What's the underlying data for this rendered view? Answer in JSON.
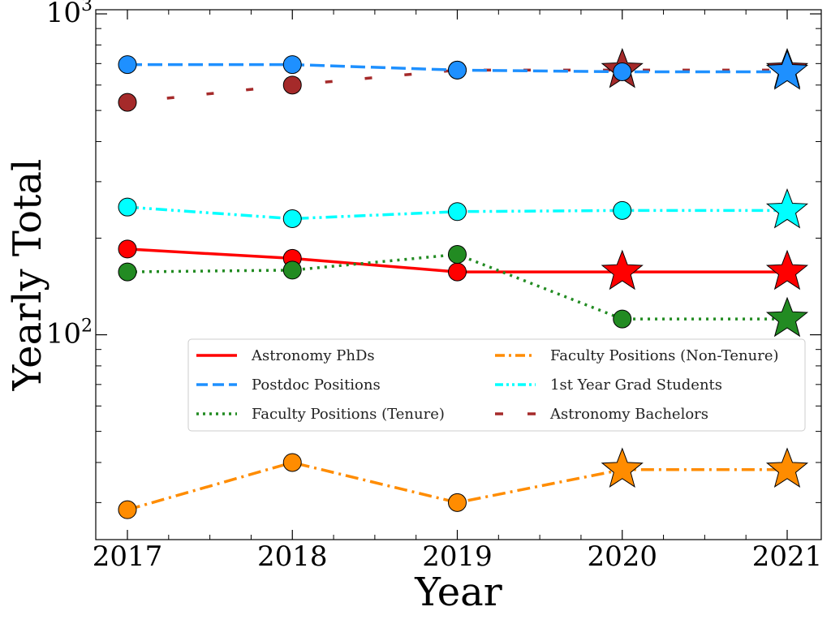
{
  "chart_data": {
    "type": "line",
    "title": "",
    "xlabel": "Year",
    "ylabel": "Yearly Total",
    "yscale": "log",
    "ylim": [
      23,
      1030
    ],
    "xlim": [
      2016.8,
      2021.2
    ],
    "x": [
      2017,
      2018,
      2019,
      2020,
      2021
    ],
    "x_tick_labels": [
      "2017",
      "2018",
      "2019",
      "2020",
      "2021"
    ],
    "y_tick_labels": [
      {
        "value": 100,
        "base": "10",
        "exp": "2"
      },
      {
        "value": 1000,
        "base": "10",
        "exp": "3"
      }
    ],
    "grid": false,
    "legend_position": "center-right",
    "legend_columns": 2,
    "series": [
      {
        "name": "Astronomy PhDs",
        "color": "#ff0000",
        "linestyle": "solid",
        "values": [
          185,
          173,
          157,
          157,
          157
        ],
        "estimated": [
          false,
          false,
          false,
          true,
          true
        ]
      },
      {
        "name": "Postdoc Positions",
        "color": "#1e90ff",
        "linestyle": "dashed",
        "values": [
          695,
          695,
          668,
          660,
          660
        ],
        "estimated": [
          false,
          false,
          false,
          false,
          true
        ]
      },
      {
        "name": "Faculty Positions (Tenure)",
        "color": "#228b22",
        "linestyle": "dotted",
        "values": [
          157,
          159,
          178,
          112,
          112
        ],
        "estimated": [
          false,
          false,
          false,
          false,
          true
        ]
      },
      {
        "name": "Faculty Positions (Non-Tenure)",
        "color": "#ff8c00",
        "linestyle": "dashdot",
        "values": [
          28.5,
          40,
          30,
          38,
          38
        ],
        "estimated": [
          false,
          false,
          false,
          true,
          true
        ]
      },
      {
        "name": "1st Year Grad Students",
        "color": "#00ffff",
        "linestyle": "dashdotdot",
        "values": [
          250,
          230,
          242,
          244,
          244
        ],
        "estimated": [
          false,
          false,
          false,
          false,
          true
        ]
      },
      {
        "name": "Astronomy Bachelors",
        "color": "#a52a2a",
        "linestyle": "loosedash",
        "values": [
          530,
          600,
          668,
          668,
          668
        ],
        "estimated": [
          false,
          false,
          false,
          true,
          true
        ]
      }
    ]
  }
}
